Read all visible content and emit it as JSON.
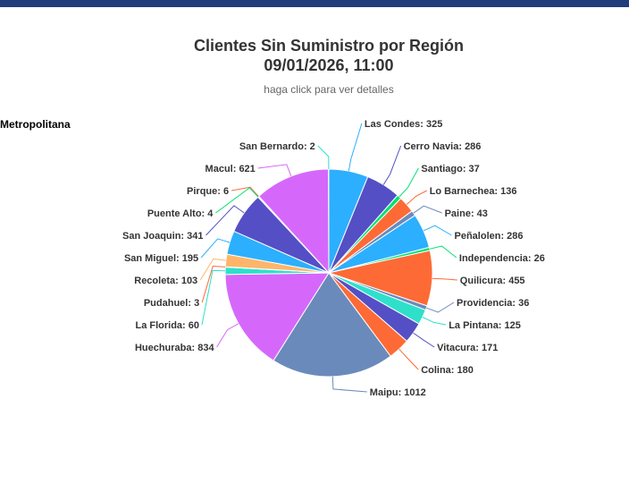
{
  "header": {
    "title_line1": "Clientes Sin Suministro por Región",
    "title_line2": "09/01/2026, 11:00",
    "subtitle": "haga click para ver detalles"
  },
  "region_label": "Metropolitana",
  "chart_data": {
    "type": "pie",
    "title": "Clientes Sin Suministro por Región 09/01/2026, 11:00",
    "subtitle": "haga click para ver detalles",
    "slices": [
      {
        "name": "Las Condes",
        "value": 325,
        "color": "#2caffe"
      },
      {
        "name": "Cerro Navia",
        "value": 286,
        "color": "#544fc5"
      },
      {
        "name": "Santiago",
        "value": 37,
        "color": "#00e272"
      },
      {
        "name": "Lo Barnechea",
        "value": 136,
        "color": "#fe6a35"
      },
      {
        "name": "Paine",
        "value": 43,
        "color": "#6b8abc"
      },
      {
        "name": "Peñalolen",
        "value": 286,
        "color": "#2caffe"
      },
      {
        "name": "Independencia",
        "value": 26,
        "color": "#00e272"
      },
      {
        "name": "Quilicura",
        "value": 455,
        "color": "#fe6a35"
      },
      {
        "name": "Providencia",
        "value": 36,
        "color": "#6b8abc"
      },
      {
        "name": "La Pintana",
        "value": 125,
        "color": "#2ee0ca"
      },
      {
        "name": "Vitacura",
        "value": 171,
        "color": "#544fc5"
      },
      {
        "name": "Colina",
        "value": 180,
        "color": "#fe6a35"
      },
      {
        "name": "Maipu",
        "value": 1012,
        "color": "#6b8abc"
      },
      {
        "name": "Huechuraba",
        "value": 834,
        "color": "#d568fb"
      },
      {
        "name": "La Florida",
        "value": 60,
        "color": "#2ee0ca"
      },
      {
        "name": "Pudahuel",
        "value": 3,
        "color": "#fe6a35"
      },
      {
        "name": "Recoleta",
        "value": 103,
        "color": "#feb56a"
      },
      {
        "name": "San Miguel",
        "value": 195,
        "color": "#2caffe"
      },
      {
        "name": "San Joaquin",
        "value": 341,
        "color": "#544fc5"
      },
      {
        "name": "Puente Alto",
        "value": 4,
        "color": "#00e272"
      },
      {
        "name": "Pirque",
        "value": 6,
        "color": "#fe6a35"
      },
      {
        "name": "Macul",
        "value": 621,
        "color": "#d568fb"
      },
      {
        "name": "San Bernardo",
        "value": 2,
        "color": "#2ee0ca"
      }
    ]
  }
}
